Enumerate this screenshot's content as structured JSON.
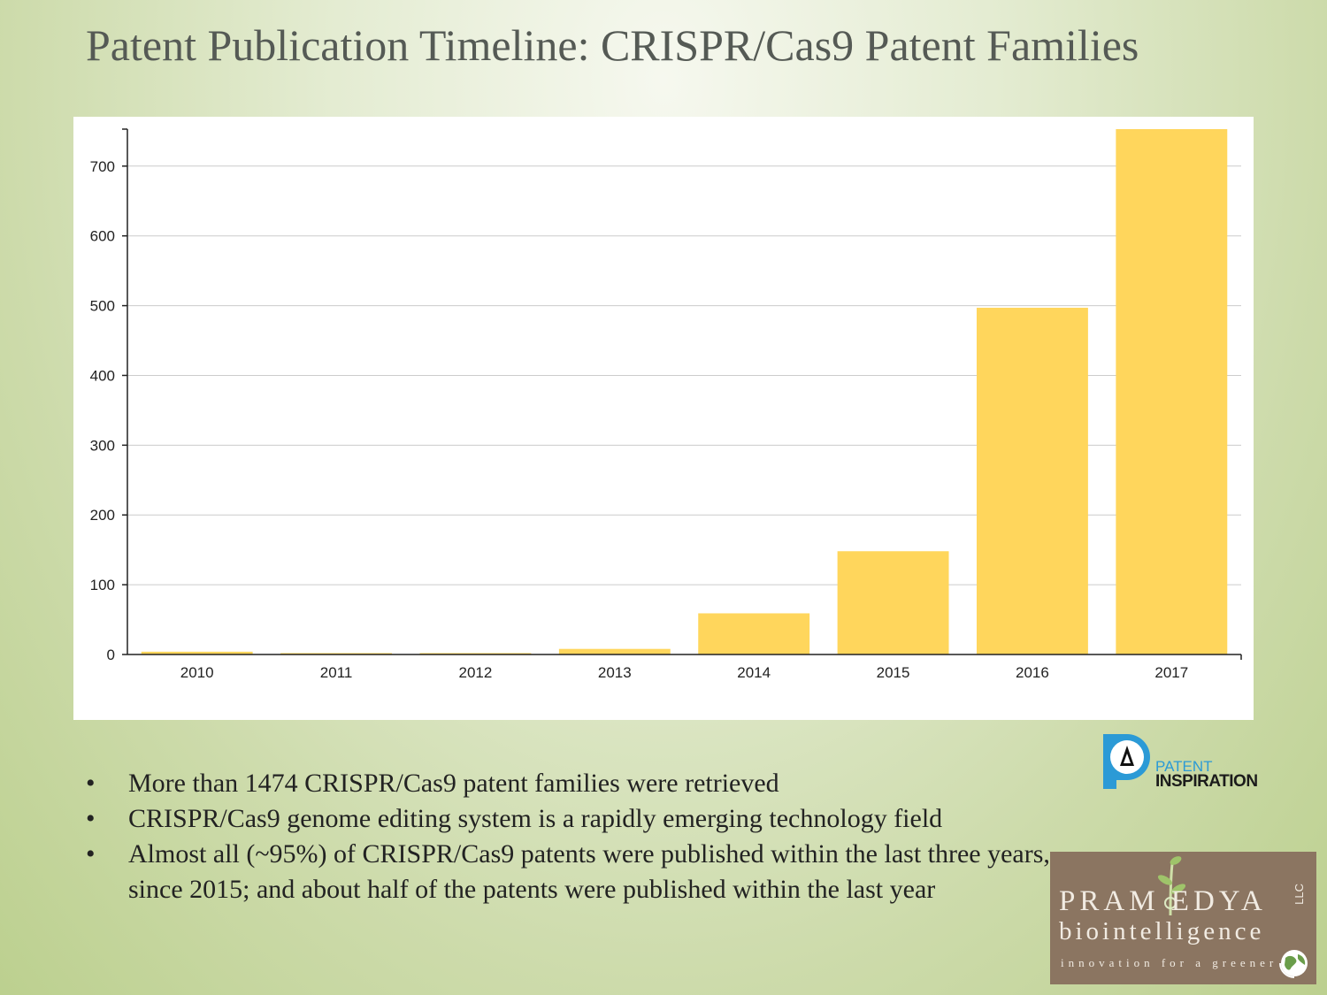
{
  "slide": {
    "title": "Patent Publication Timeline: CRISPR/Cas9 Patent Families",
    "bullets": [
      "More than 1474 CRISPR/Cas9 patent families were retrieved",
      "CRISPR/Cas9 genome editing system is a rapidly emerging technology field",
      "Almost all (~95%) of CRISPR/Cas9 patents were published within the last three years, since 2015; and about half of the patents were published within the last year"
    ]
  },
  "chart_data": {
    "type": "bar",
    "categories": [
      "2010",
      "2011",
      "2012",
      "2013",
      "2014",
      "2015",
      "2016",
      "2017"
    ],
    "values": [
      4,
      2,
      2,
      8,
      59,
      148,
      497,
      753
    ],
    "title": "",
    "xlabel": "",
    "ylabel": "",
    "ylim": [
      0,
      753
    ],
    "yticks": [
      0,
      100,
      200,
      300,
      400,
      500,
      600,
      700
    ],
    "grid": "horizontal",
    "bar_color": "#ffd65c"
  },
  "logos": {
    "patent_inspiration": {
      "line1": "PATENT",
      "line2": "INSPIRATION",
      "color": "#2b9ad6"
    },
    "pramoedya": {
      "name": "PRAM EDYA",
      "sub": "biointelligence",
      "tagline": "innovation for a greener",
      "suffix": "LLC",
      "color": "#8b7561"
    }
  }
}
